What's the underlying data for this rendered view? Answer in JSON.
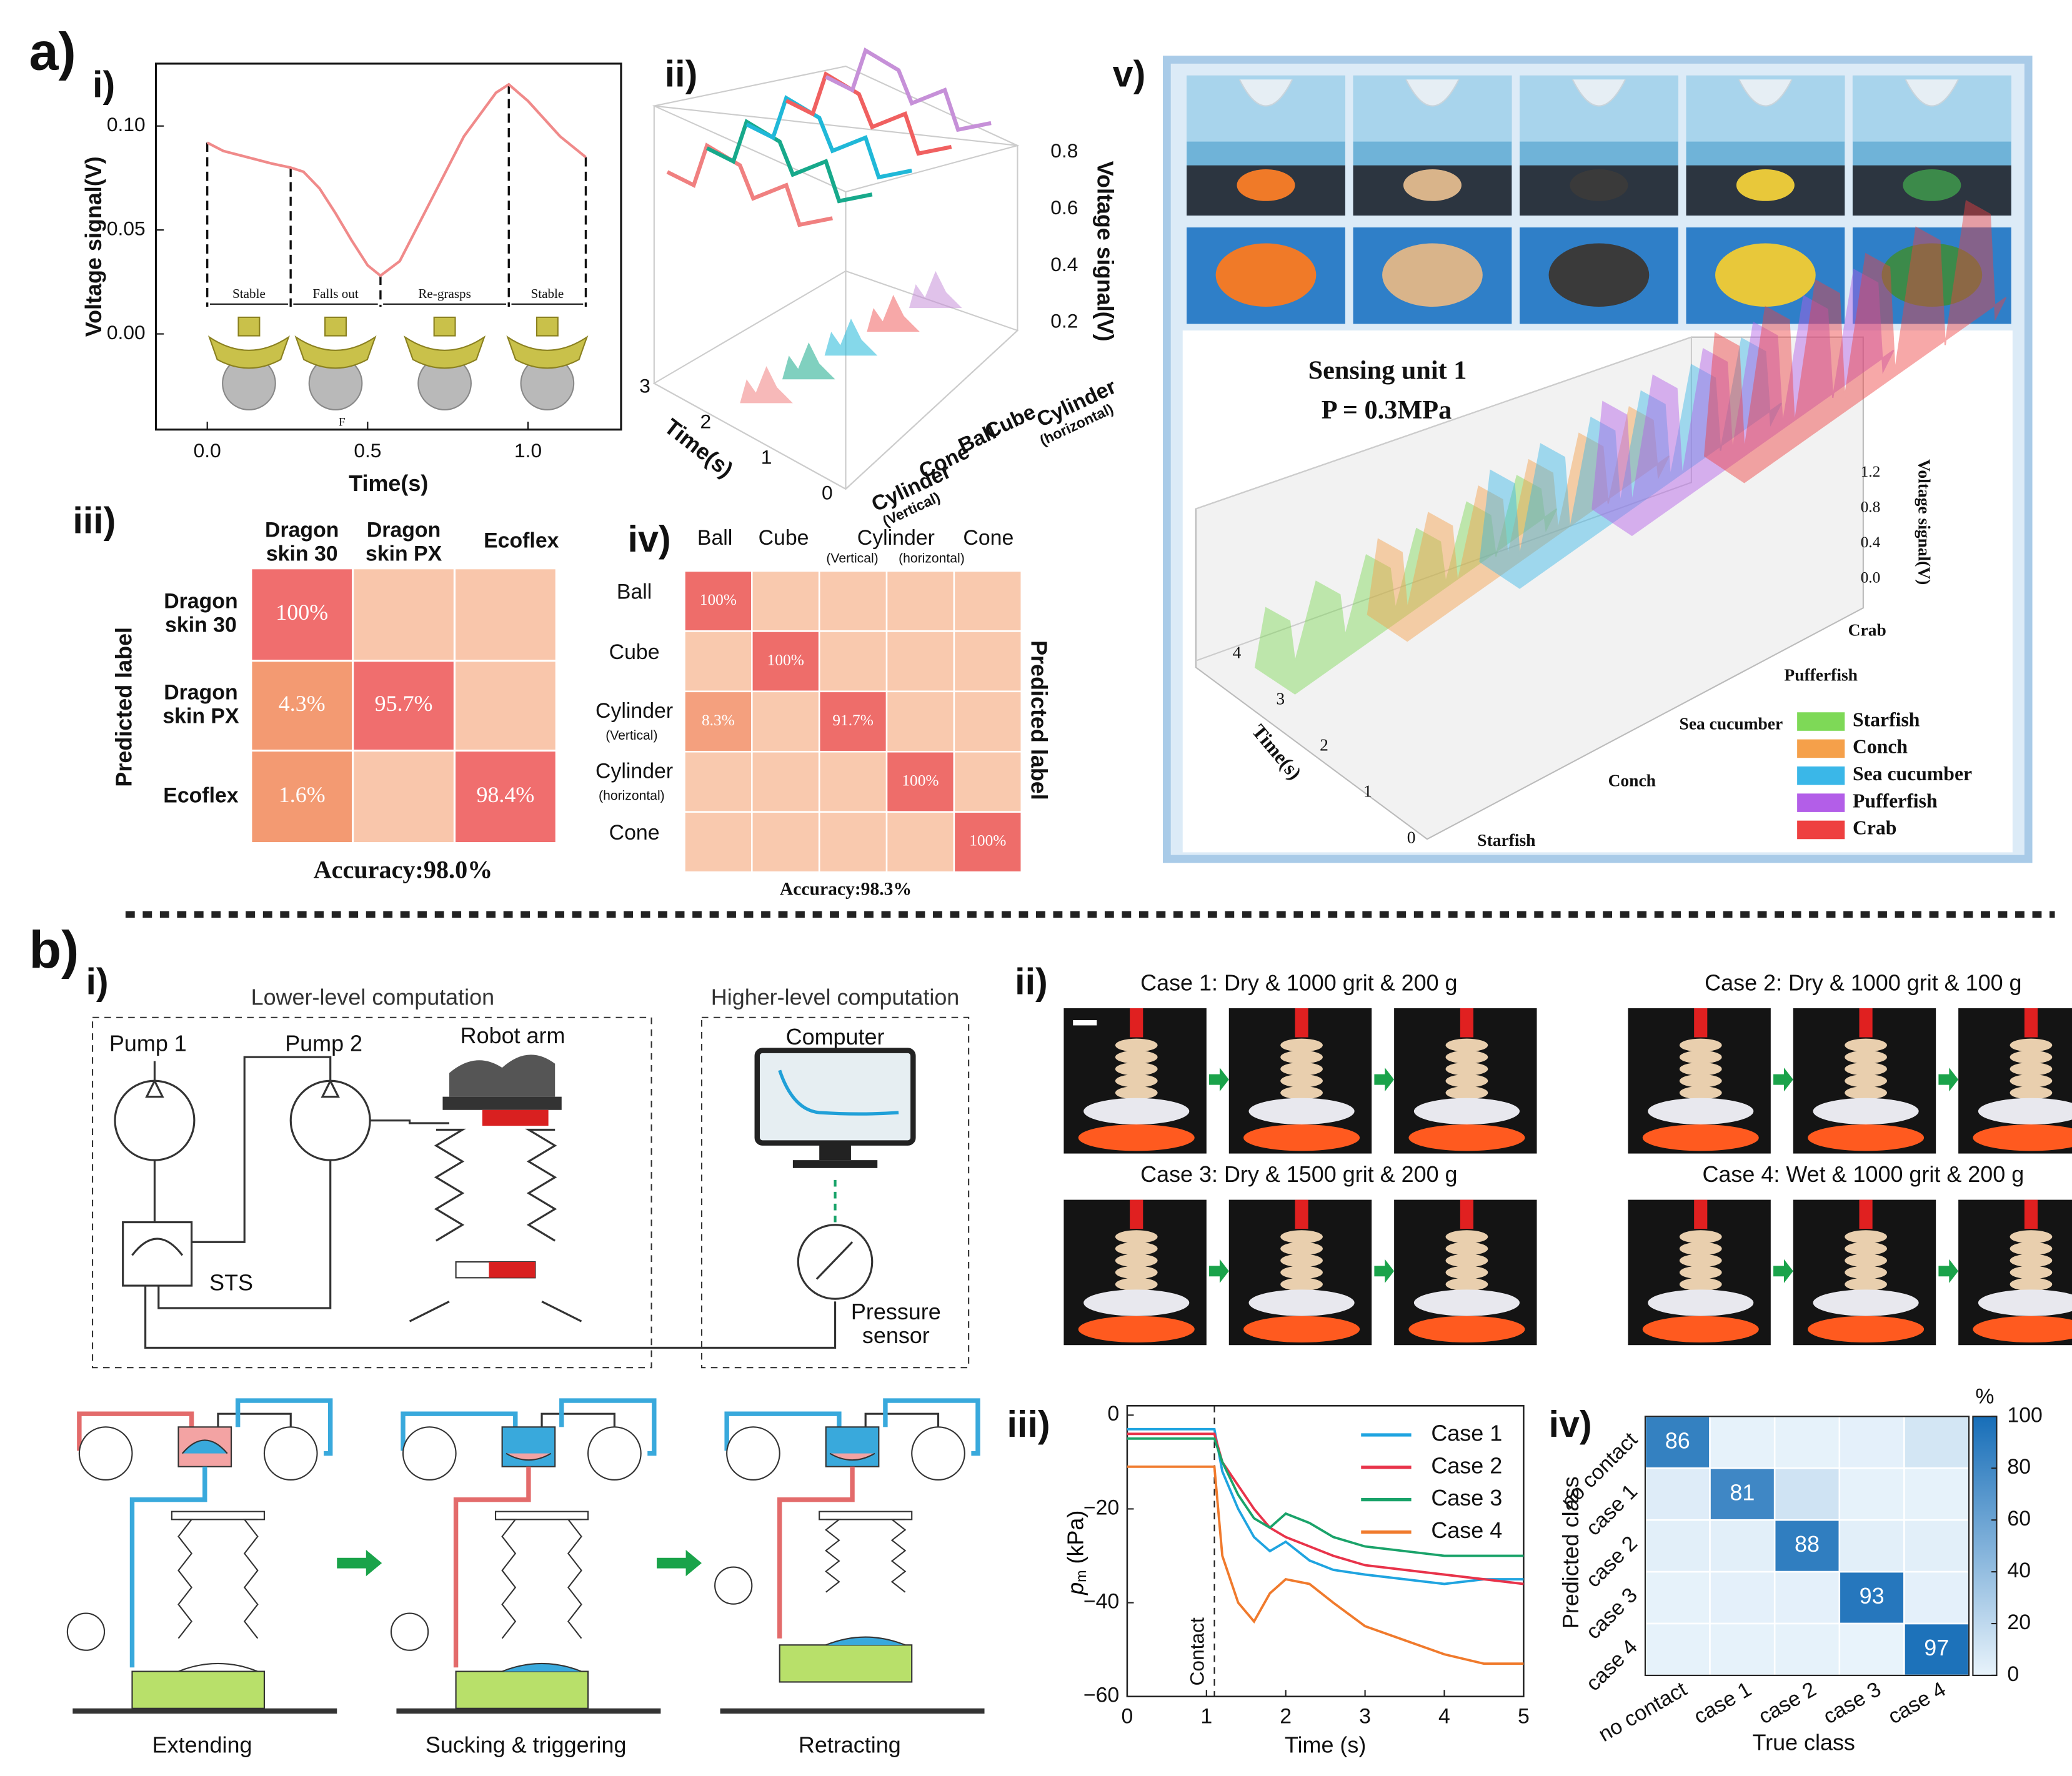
{
  "panel_a": {
    "label": "a)",
    "i": {
      "label": "i)",
      "chart_data": {
        "type": "line",
        "x": [
          0,
          0.05,
          0.1,
          0.2,
          0.26,
          0.3,
          0.35,
          0.4,
          0.45,
          0.5,
          0.54,
          0.6,
          0.7,
          0.8,
          0.9,
          0.94,
          1.0,
          1.1,
          1.18
        ],
        "values": [
          0.092,
          0.088,
          0.086,
          0.082,
          0.08,
          0.078,
          0.07,
          0.058,
          0.045,
          0.033,
          0.028,
          0.035,
          0.065,
          0.095,
          0.116,
          0.12,
          0.112,
          0.095,
          0.085
        ],
        "color": "#f08a8a",
        "xlabel": "Time(s)",
        "ylabel": "Voltage signal(V)",
        "xlim": [
          -0.16,
          1.29
        ],
        "ylim": [
          -0.046,
          0.13
        ],
        "xticks": [
          {
            "value": 0,
            "label": "0.0"
          },
          {
            "value": 0.5,
            "label": "0.5"
          },
          {
            "value": 1,
            "label": "1.0"
          }
        ],
        "yticks": [
          {
            "value": 0,
            "label": "0.00"
          },
          {
            "value": 0.05,
            "label": "0.05"
          },
          {
            "value": 0.1,
            "label": "0.10"
          }
        ],
        "phases": [
          "Stable",
          "Falls out",
          "Re-grasps",
          "Stable"
        ],
        "phase_bounds": [
          0,
          0.26,
          0.54,
          0.94,
          1.18
        ],
        "force_label": "F"
      }
    },
    "ii": {
      "label": "ii)",
      "zlabel": "Voltage signal(V)",
      "zticks": [
        0.8,
        0.6,
        0.4,
        0.2
      ],
      "time_label": "Time(s)",
      "time_ticks": [
        3,
        2,
        1,
        0
      ],
      "objects": [
        {
          "name": "Cylinder",
          "note": "(horizontal)"
        },
        {
          "name": "Cube"
        },
        {
          "name": "Ball"
        },
        {
          "name": "Cone"
        },
        {
          "name": "Cylinder",
          "note": "(Vertical)"
        }
      ]
    },
    "iii": {
      "label": "iii)",
      "columns": [
        [
          "Dragon",
          "skin 30"
        ],
        [
          "Dragon",
          "skin PX"
        ],
        [
          "Ecoflex"
        ]
      ],
      "rows": [
        [
          "Dragon",
          "skin 30"
        ],
        [
          "Dragon",
          "skin PX"
        ],
        [
          "Ecoflex"
        ]
      ],
      "cells": [
        [
          "100%",
          null,
          null
        ],
        [
          "4.3%",
          "95.7%",
          null
        ],
        [
          "1.6%",
          null,
          "98.4%"
        ]
      ],
      "ylabel": "Predicted label",
      "accuracy": "Accuracy:98.0%"
    },
    "iv": {
      "label": "iv)",
      "columns": [
        {
          "name": "Ball"
        },
        {
          "name": "Cube"
        },
        {
          "name": "Cylinder",
          "notes": [
            "(Vertical)",
            "(horizontal)"
          ]
        },
        {
          "name": "Cone"
        }
      ],
      "rows": [
        {
          "name": "Ball"
        },
        {
          "name": "Cube"
        },
        {
          "name": "Cylinder",
          "note": "(Vertical)"
        },
        {
          "name": "Cylinder",
          "note": "(horizontal)"
        },
        {
          "name": "Cone"
        }
      ],
      "cells": [
        [
          "100%",
          null,
          null,
          null,
          null
        ],
        [
          null,
          "100%",
          null,
          null,
          null
        ],
        [
          "8.3%",
          null,
          "91.7%",
          null,
          null
        ],
        [
          null,
          null,
          null,
          "100%",
          null
        ],
        [
          null,
          null,
          null,
          null,
          "100%"
        ]
      ],
      "ylabel": "Predicted label",
      "accuracy": "Accuracy:98.3%"
    },
    "v": {
      "label": "v)",
      "title": "Sensing unit 1",
      "pressure": "P = 0.3MPa",
      "zlabel": "Voltage signal(V)",
      "zticks": [
        {
          "value": 0,
          "label": "0.0"
        },
        0.4,
        0.8,
        1.2
      ],
      "time_label": "Time(s)",
      "time_ticks": [
        0,
        1,
        2,
        3,
        4
      ],
      "series": [
        {
          "name": "Starfish",
          "color": "#7ed957"
        },
        {
          "name": "Conch",
          "color": "#f5a04a"
        },
        {
          "name": "Sea cucumber",
          "color": "#3ab7e8"
        },
        {
          "name": "Pufferfish",
          "color": "#b35ee8"
        },
        {
          "name": "Crab",
          "color": "#ee4040"
        }
      ]
    }
  },
  "panel_b": {
    "label": "b)",
    "i": {
      "label": "i)",
      "lower_title": "Lower-level computation",
      "higher_title": "Higher-level computation",
      "pump1": "Pump 1",
      "pump2": "Pump 2",
      "robot_arm": "Robot arm",
      "computer": "Computer",
      "sts": "STS",
      "pressure_sensor": [
        "Pressure",
        "sensor"
      ],
      "stages": [
        "Extending",
        "Sucking & triggering",
        "Retracting"
      ]
    },
    "ii": {
      "label": "ii)",
      "cases": [
        "Case 1: Dry & 1000 grit & 200 g",
        "Case 2: Dry & 1000 grit & 100 g",
        "Case 3: Dry & 1500 grit & 200 g",
        "Case 4: Wet & 1000 grit & 200 g"
      ]
    },
    "iii": {
      "label": "iii)",
      "chart_data": {
        "type": "line",
        "x": [
          0,
          1.1,
          1.2,
          1.4,
          1.6,
          1.8,
          2.0,
          2.3,
          2.6,
          3,
          3.5,
          4,
          4.5,
          5
        ],
        "series": [
          {
            "name": "Case 1",
            "color": "#1fa4e0",
            "values": [
              -3,
              -3,
              -12,
              -20,
              -26,
              -29,
              -27,
              -31,
              -33,
              -34,
              -35,
              -36,
              -35,
              -35
            ]
          },
          {
            "name": "Case 2",
            "color": "#e8334a",
            "values": [
              -4,
              -4,
              -10,
              -15,
              -20,
              -24,
              -26,
              -28,
              -30,
              -32,
              -33,
              -34,
              -35,
              -36
            ]
          },
          {
            "name": "Case 3",
            "color": "#1aa36a",
            "values": [
              -5,
              -5,
              -10,
              -17,
              -22,
              -24,
              -21,
              -23,
              -26,
              -28,
              -29,
              -30,
              -30,
              -30
            ]
          },
          {
            "name": "Case 4",
            "color": "#f07a2c",
            "values": [
              -11,
              -11,
              -30,
              -40,
              -44,
              -38,
              -35,
              -36,
              -40,
              -45,
              -48,
              -51,
              -53,
              -53
            ]
          }
        ],
        "xlim": [
          0,
          5
        ],
        "ylim": [
          -60,
          2
        ],
        "xticks": [
          0,
          1,
          2,
          3,
          4,
          5
        ],
        "yticks": [
          0,
          {
            "value": -20,
            "label": "−20"
          },
          {
            "value": -40,
            "label": "−40"
          },
          {
            "value": -60,
            "label": "−60"
          }
        ],
        "xlabel": "Time (s)",
        "ylabel_symbol": "p",
        "ylabel_sub": "m",
        "ylabel_unit": " (kPa)",
        "contact_x": 1.1,
        "contact_label": "Contact"
      }
    },
    "iv": {
      "label": "iv)",
      "matrix": [
        [
          86,
          1,
          1,
          2,
          10
        ],
        [
          5,
          81,
          12,
          1,
          1
        ],
        [
          3,
          3,
          88,
          3,
          3
        ],
        [
          1,
          2,
          2,
          93,
          2
        ],
        [
          1,
          1,
          1,
          0,
          97
        ]
      ],
      "row_labels": [
        "no contact",
        "case 1",
        "case 2",
        "case 3",
        "case 4"
      ],
      "col_labels": [
        "no contact",
        "case 1",
        "case 2",
        "case 3",
        "case 4"
      ],
      "ylabel": "Predicted class",
      "xlabel": "True class",
      "colorbar_label": "%",
      "clim": [
        0,
        100
      ],
      "colorbar_ticks": [
        0,
        20,
        40,
        60,
        80,
        100
      ]
    }
  }
}
